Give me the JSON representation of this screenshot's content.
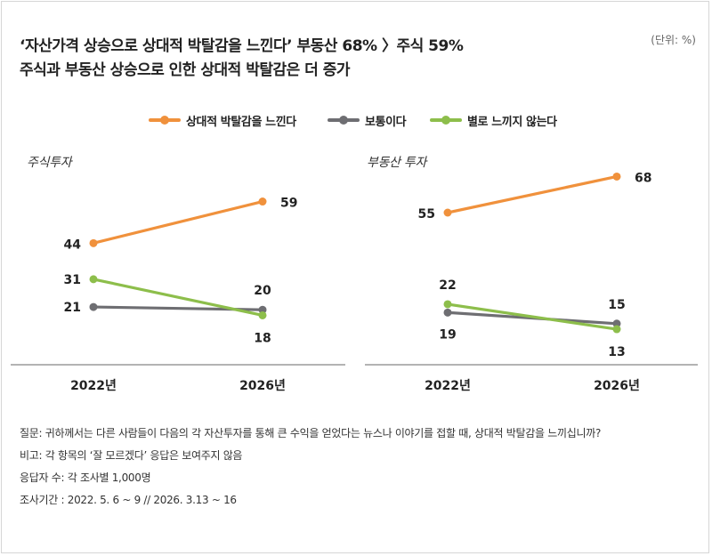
{
  "header": {
    "title_line1": "‘자산가격 상승으로 상대적 박탈감을 느낀다’ 부동산 68% 〉주식 59%",
    "title_line2": "주식과 부동산 상승으로 인한 상대적 박탈감은 더 증가",
    "unit": "(단위: %)"
  },
  "colors": {
    "orange": "#F0913C",
    "gray": "#6E6E72",
    "green": "#8DBE4B",
    "axis": "#9a9a9a"
  },
  "chart_data": [
    {
      "type": "line",
      "title": "주식투자",
      "categories": [
        "2022년",
        "2026년"
      ],
      "series": [
        {
          "name": "상대적 박탈감을 느낀다",
          "values": [
            44,
            59
          ]
        },
        {
          "name": "보통이다",
          "values": [
            21,
            20
          ]
        },
        {
          "name": "별로 느끼지 않는다",
          "values": [
            31,
            18
          ]
        }
      ],
      "ylim": [
        0,
        80
      ]
    },
    {
      "type": "line",
      "title": "부동산 투자",
      "categories": [
        "2022년",
        "2026년"
      ],
      "series": [
        {
          "name": "상대적 박탈감을 느낀다",
          "values": [
            55,
            68
          ]
        },
        {
          "name": "보통이다",
          "values": [
            19,
            15
          ]
        },
        {
          "name": "별로 느끼지 않는다",
          "values": [
            22,
            13
          ]
        }
      ],
      "ylim": [
        0,
        80
      ]
    }
  ],
  "legend": [
    {
      "label": "상대적 박탈감을 느낀다",
      "color_key": "orange"
    },
    {
      "label": "보통이다",
      "color_key": "gray"
    },
    {
      "label": "별로 느끼지 않는다",
      "color_key": "green"
    }
  ],
  "footnotes": [
    "질문: 귀하께서는 다른 사람들이 다음의 각 자산투자를 통해 큰 수익을 얻었다는 뉴스나 이야기를 접할 때, 상대적 박탈감을 느끼십니까?",
    "비고: 각 항목의 ‘잘 모르겠다’ 응답은 보여주지 않음",
    "응답자 수: 각 조사별 1,000명",
    "조사기간 : 2022. 5. 6 ~ 9 // 2026. 3.13 ~ 16"
  ]
}
